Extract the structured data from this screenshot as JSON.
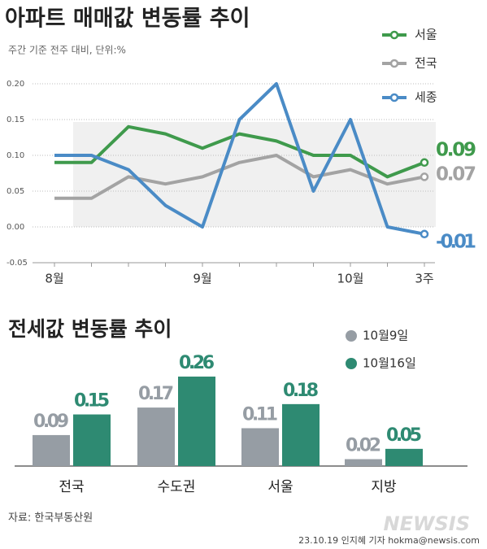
{
  "chart_data": [
    {
      "type": "line",
      "title": "아파트 매매값 변동률 추이",
      "subtitle": "주간 기준 전주 대비, 단위:%",
      "categories": [
        "8월",
        null,
        null,
        null,
        "9월",
        null,
        null,
        null,
        "10월",
        null,
        "3주"
      ],
      "series": [
        {
          "name": "서울",
          "color": "#3f9a4c",
          "values": [
            0.09,
            0.09,
            0.14,
            0.13,
            0.11,
            0.13,
            0.12,
            0.1,
            0.1,
            0.07,
            0.09
          ]
        },
        {
          "name": "전국",
          "color": "#a3a3a3",
          "values": [
            0.04,
            0.04,
            0.07,
            0.06,
            0.07,
            0.09,
            0.1,
            0.07,
            0.08,
            0.06,
            0.07
          ]
        },
        {
          "name": "세종",
          "color": "#4a8bc6",
          "values": [
            0.1,
            0.1,
            0.08,
            0.03,
            0.0,
            0.15,
            0.2,
            0.05,
            0.15,
            0.0,
            -0.01
          ]
        }
      ],
      "ylim": [
        -0.05,
        0.2
      ],
      "yticks": [
        {
          "value": 0.2,
          "label": "0.20"
        },
        0.15,
        {
          "value": 0.1,
          "label": "0.10"
        },
        0.05,
        {
          "value": 0,
          "label": "0.00"
        },
        -0.05
      ],
      "grid": true,
      "legend": "top-right"
    },
    {
      "type": "bar",
      "title": "전세값 변동률 추이",
      "categories": [
        "전국",
        "수도권",
        "서울",
        "지방"
      ],
      "series": [
        {
          "name": "10월9일",
          "color": "#969da4",
          "values": [
            0.09,
            0.17,
            0.11,
            0.02
          ]
        },
        {
          "name": "10월16일",
          "color": "#2e8a72",
          "values": [
            0.15,
            0.26,
            0.18,
            0.05
          ]
        }
      ],
      "legend": "top-right"
    }
  ],
  "source": "자료: 한국부동산원",
  "credit": "23.10.19 인지혜 기자 hokma@newsis.com",
  "logo": "NEWSIS"
}
